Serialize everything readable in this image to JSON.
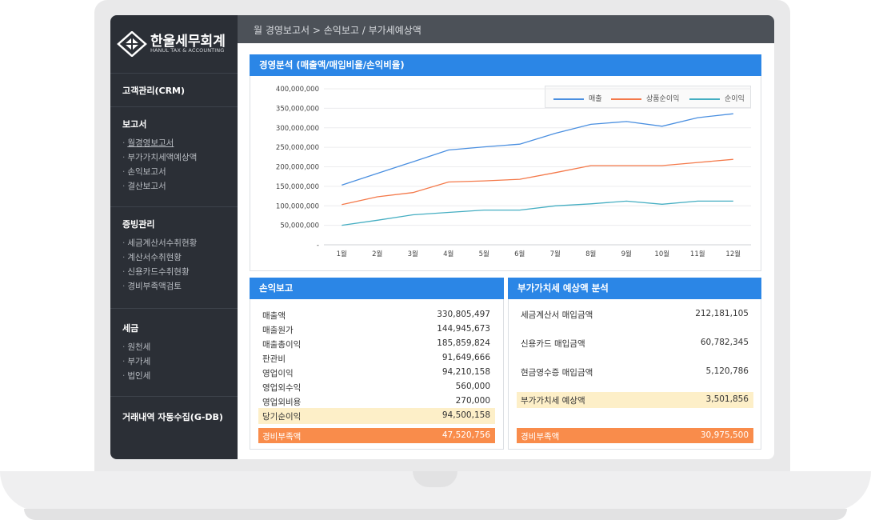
{
  "brand": {
    "name": "한울세무회계",
    "subtitle": "HANUL TAX & ACCOUNTING"
  },
  "sidebar": {
    "sections": [
      {
        "title": "고객관리(CRM)",
        "items": []
      },
      {
        "title": "보고서",
        "items": [
          "월경영보고서",
          "부가가치세액예상액",
          "손익보고서",
          "결산보고서"
        ]
      },
      {
        "title": "증빙관리",
        "items": [
          "세금계산서수취현황",
          "계산서수취현황",
          "신용카드수취현황",
          "경비부족액검토"
        ]
      },
      {
        "title": "세금",
        "items": [
          "원천세",
          "부가세",
          "법인세"
        ]
      },
      {
        "title": "거래내역 자동수집(G-DB)",
        "items": []
      }
    ],
    "item_prefix": "·"
  },
  "breadcrumb": "월 경영보고서 > 손익보고 / 부가세예상액",
  "chart_panel": {
    "title": "경영분석 (매출액/매입비율/손익비율)"
  },
  "chart_data": {
    "type": "line",
    "categories": [
      "1월",
      "2월",
      "3월",
      "4월",
      "5월",
      "6월",
      "7월",
      "8월",
      "9월",
      "10월",
      "11월",
      "12월"
    ],
    "y_ticks": [
      "400,000,000",
      "350,000,000",
      "300,000,000",
      "250,000,000",
      "200,000,000",
      "150,000,000",
      "100,000,000",
      "50,000,000",
      "-"
    ],
    "ylim": [
      0,
      400000000
    ],
    "grid": true,
    "legend_position": "top-right",
    "series": [
      {
        "name": "매출",
        "color": "#4a8fe0",
        "values": [
          153000000,
          183000000,
          213000000,
          243000000,
          251000000,
          258000000,
          286000000,
          309000000,
          316000000,
          304000000,
          326000000,
          336000000
        ]
      },
      {
        "name": "상품순이익",
        "color": "#f4794a",
        "values": [
          103000000,
          123000000,
          134000000,
          161000000,
          164000000,
          168000000,
          185000000,
          203000000,
          203000000,
          203000000,
          211000000,
          219000000
        ]
      },
      {
        "name": "순이익",
        "color": "#45aec2",
        "values": [
          50000000,
          63000000,
          77000000,
          83000000,
          89000000,
          89000000,
          100000000,
          105000000,
          112000000,
          104000000,
          112000000,
          112000000
        ]
      }
    ]
  },
  "pl_panel": {
    "title": "손익보고",
    "rows": [
      {
        "label": "매출액",
        "value": "330,805,497"
      },
      {
        "label": "매출원가",
        "value": "144,945,673"
      },
      {
        "label": "매출총이익",
        "value": "185,859,824"
      },
      {
        "label": "판관비",
        "value": "91,649,666"
      },
      {
        "label": "영업이익",
        "value": "94,210,158"
      },
      {
        "label": "영업외수익",
        "value": "560,000"
      },
      {
        "label": "영업외비용",
        "value": "270,000"
      },
      {
        "label": "당기순이익",
        "value": "94,500,158"
      }
    ],
    "shortfall": {
      "label": "경비부족액",
      "value": "47,520,756"
    }
  },
  "vat_panel": {
    "title": "부가가치세 예상액 분석",
    "rows": [
      {
        "label": "세금계산서 매입금액",
        "value": "212,181,105"
      },
      {
        "label": "신용카드 매입금액",
        "value": "60,782,345"
      },
      {
        "label": "현금영수증 매입금액",
        "value": "5,120,786"
      },
      {
        "label": "부가가치세 예상액",
        "value": "3,501,856"
      }
    ],
    "shortfall": {
      "label": "경비부족액",
      "value": "30,975,500"
    }
  },
  "colors": {
    "accent": "#2b86e6",
    "sidebar": "#2b2f36",
    "highlight_yellow": "#fdefc8",
    "highlight_orange": "#f98c4b"
  }
}
